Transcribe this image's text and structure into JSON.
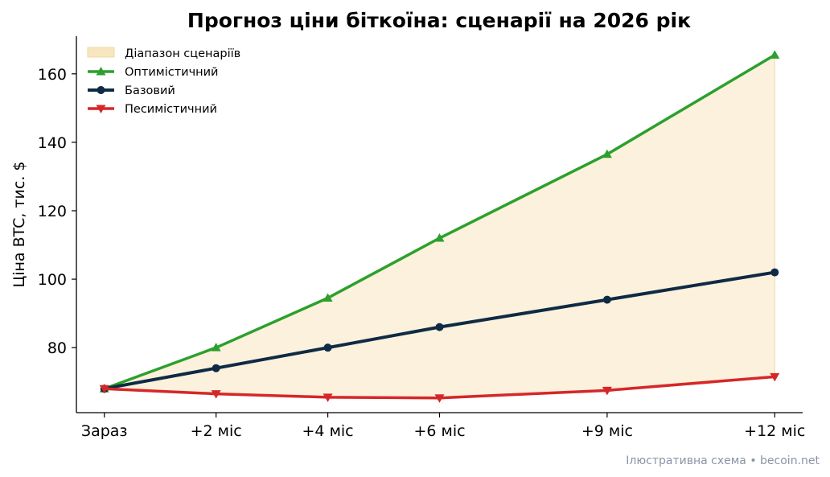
{
  "chart_data": {
    "type": "line",
    "title": "Прогноз ціни біткоїна: сценарії на 2026 рік",
    "xlabel": "",
    "ylabel": "Ціна BTC, тис. $",
    "categories": [
      "Зараз",
      "+2 міс",
      "+4 міс",
      "+6 міс",
      "+9 міс",
      "+12 міс"
    ],
    "x": [
      0,
      2,
      4,
      6,
      9,
      12
    ],
    "ylim": [
      61,
      171
    ],
    "yticks": [
      80,
      100,
      120,
      140,
      160
    ],
    "grid": false,
    "legend_position": "top-left",
    "band": {
      "name": "Діапазон сценаріїв",
      "color": "#f7e6bf",
      "lower": "Песимістичний",
      "upper": "Оптимістичний"
    },
    "series": [
      {
        "name": "Оптимістичний",
        "color": "#2ca02c",
        "marker": "triangle-up",
        "values": [
          68,
          80,
          94.5,
          112,
          136.5,
          165.5
        ]
      },
      {
        "name": "Базовий",
        "color": "#0f2a44",
        "marker": "circle",
        "values": [
          68,
          74,
          80,
          86,
          94,
          102
        ]
      },
      {
        "name": "Песимістичний",
        "color": "#d62728",
        "marker": "triangle-down",
        "values": [
          68,
          66.5,
          65.5,
          65.3,
          67.5,
          71.5
        ]
      }
    ]
  },
  "source_note": "Ілюстративна схема • becoin.net"
}
